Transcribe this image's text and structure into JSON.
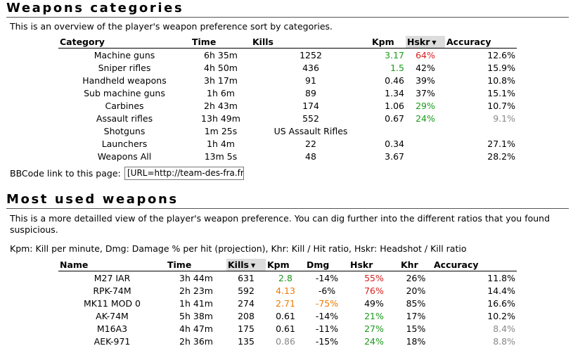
{
  "section1": {
    "title": "Weapons categories",
    "description": "This is an overview of the player's weapon preference sort by categories.",
    "headers": {
      "category": "Category",
      "time": "Time",
      "kills": "Kills",
      "kpm": "Kpm",
      "hskr": "Hskr",
      "accuracy": "Accuracy"
    },
    "sort_arrow": "▼",
    "rows": [
      {
        "category": "Machine guns",
        "time": "6h 35m",
        "kills": "1252",
        "kpm": "3.17",
        "kpm_color": "green",
        "hskr": "64%",
        "hskr_color": "red",
        "accuracy": "12.6%",
        "acc_color": ""
      },
      {
        "category": "Sniper rifles",
        "time": "4h 50m",
        "kills": "436",
        "kpm": "1.5",
        "kpm_color": "green",
        "hskr": "42%",
        "hskr_color": "",
        "accuracy": "15.9%",
        "acc_color": ""
      },
      {
        "category": "Handheld weapons",
        "time": "3h 17m",
        "kills": "91",
        "kpm": "0.46",
        "kpm_color": "",
        "hskr": "39%",
        "hskr_color": "",
        "accuracy": "10.8%",
        "acc_color": ""
      },
      {
        "category": "Sub machine guns",
        "time": "1h 6m",
        "kills": "89",
        "kpm": "1.34",
        "kpm_color": "",
        "hskr": "37%",
        "hskr_color": "",
        "accuracy": "15.1%",
        "acc_color": ""
      },
      {
        "category": "Carbines",
        "time": "2h 43m",
        "kills": "174",
        "kpm": "1.06",
        "kpm_color": "",
        "hskr": "29%",
        "hskr_color": "green",
        "accuracy": "10.7%",
        "acc_color": ""
      },
      {
        "category": "Assault rifles",
        "time": "13h 49m",
        "kills": "552",
        "kpm": "0.67",
        "kpm_color": "",
        "hskr": "24%",
        "hskr_color": "green",
        "accuracy": "9.1%",
        "acc_color": "grey"
      },
      {
        "category": "Shotguns",
        "time": "1m 25s",
        "kills": "US Assault Rifles",
        "kpm": "",
        "kpm_color": "",
        "hskr": "",
        "hskr_color": "",
        "accuracy": "",
        "acc_color": ""
      },
      {
        "category": "Launchers",
        "time": "1h 4m",
        "kills": "22",
        "kpm": "0.34",
        "kpm_color": "",
        "hskr": "",
        "hskr_color": "",
        "accuracy": "27.1%",
        "acc_color": ""
      },
      {
        "category": "Weapons All",
        "time": "13m 5s",
        "kills": "48",
        "kpm": "3.67",
        "kpm_color": "",
        "hskr": "",
        "hskr_color": "",
        "accuracy": "28.2%",
        "acc_color": ""
      }
    ],
    "bbcode_label": "BBCode link to this page:",
    "bbcode_value": "[URL=http://team-des-fra.fr/Cc"
  },
  "section2": {
    "title": "Most used weapons",
    "description_line1": "This is a more detailled view of the player's weapon preference. You can dig further into the different ratios that you found",
    "description_line2": "suspicious.",
    "legend": "Kpm: Kill per minute, Dmg: Damage % per hit (projection), Khr: Kill / Hit ratio, Hskr: Headshot / Kill ratio",
    "headers": {
      "name": "Name",
      "time": "Time",
      "kills": "Kills",
      "kpm": "Kpm",
      "dmg": "Dmg",
      "hskr": "Hskr",
      "khr": "Khr",
      "accuracy": "Accuracy"
    },
    "sort_arrow": "▼",
    "rows": [
      {
        "name": "M27 IAR",
        "time": "3h 44m",
        "kills": "631",
        "kpm": "2.8",
        "kpm_color": "green",
        "dmg": "-14%",
        "dmg_color": "",
        "hskr": "55%",
        "hskr_color": "red",
        "khr": "26%",
        "accuracy": "11.8%",
        "acc_color": ""
      },
      {
        "name": "RPK-74M",
        "time": "2h 23m",
        "kills": "592",
        "kpm": "4.13",
        "kpm_color": "orange",
        "dmg": "-6%",
        "dmg_color": "",
        "hskr": "76%",
        "hskr_color": "red",
        "khr": "20%",
        "accuracy": "14.4%",
        "acc_color": ""
      },
      {
        "name": "MK11 MOD 0",
        "time": "1h 41m",
        "kills": "274",
        "kpm": "2.71",
        "kpm_color": "orange",
        "dmg": "-75%",
        "dmg_color": "orange",
        "hskr": "49%",
        "hskr_color": "",
        "khr": "85%",
        "accuracy": "16.6%",
        "acc_color": ""
      },
      {
        "name": "AK-74M",
        "time": "5h 38m",
        "kills": "208",
        "kpm": "0.61",
        "kpm_color": "",
        "dmg": "-14%",
        "dmg_color": "",
        "hskr": "21%",
        "hskr_color": "green",
        "khr": "17%",
        "accuracy": "10.2%",
        "acc_color": ""
      },
      {
        "name": "M16A3",
        "time": "4h 47m",
        "kills": "175",
        "kpm": "0.61",
        "kpm_color": "",
        "dmg": "-11%",
        "dmg_color": "",
        "hskr": "27%",
        "hskr_color": "green",
        "khr": "15%",
        "accuracy": "8.4%",
        "acc_color": "grey"
      },
      {
        "name": "AEK-971",
        "time": "2h 36m",
        "kills": "135",
        "kpm": "0.86",
        "kpm_color": "grey",
        "dmg": "-15%",
        "dmg_color": "",
        "hskr": "24%",
        "hskr_color": "green",
        "khr": "18%",
        "accuracy": "8.8%",
        "acc_color": "grey"
      }
    ]
  },
  "colors": {
    "green": "#1a9a1a",
    "red": "#d81e1e",
    "orange": "#f07800",
    "grey": "#888888",
    "sorted_header": "#dcdcdc"
  }
}
